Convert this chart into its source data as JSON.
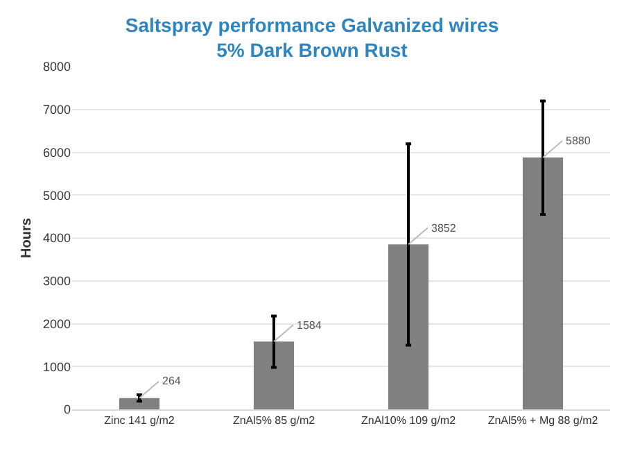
{
  "chart_data": {
    "type": "bar",
    "title": "Saltspray performance Galvanized wires",
    "subtitle": "5% Dark Brown Rust",
    "ylabel": "Hours",
    "categories": [
      "Zinc 141 g/m2",
      "ZnAl5% 85 g/m2",
      "ZnAl10% 109 g/m2",
      "ZnAl5% + Mg 88 g/m2"
    ],
    "values": [
      264,
      1584,
      3852,
      5880
    ],
    "color": "#808080",
    "errors": [
      [
        190,
        340
      ],
      [
        980,
        2180
      ],
      [
        1500,
        6200
      ],
      [
        4550,
        7200
      ]
    ],
    "ylim": [
      0,
      8000
    ],
    "yticks": [
      0,
      1000,
      2000,
      3000,
      4000,
      5000,
      6000,
      7000,
      8000
    ],
    "grid": "y",
    "data_labels": true
  }
}
